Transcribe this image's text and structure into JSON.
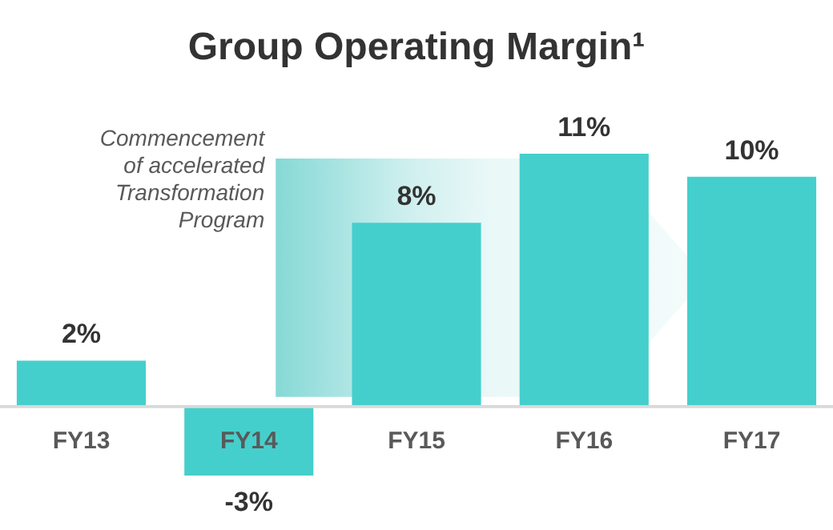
{
  "chart_data": {
    "type": "bar",
    "title": "Group Operating Margin¹",
    "categories": [
      "FY13",
      "FY14",
      "FY15",
      "FY16",
      "FY17"
    ],
    "values": [
      2,
      -3,
      8,
      11,
      10
    ],
    "color": "#45cfcc",
    "value_labels": [
      "2%",
      "-3%",
      "8%",
      "11%",
      "10%"
    ],
    "annotations": [
      "Commencement of accelerated Transformation Program"
    ]
  }
}
